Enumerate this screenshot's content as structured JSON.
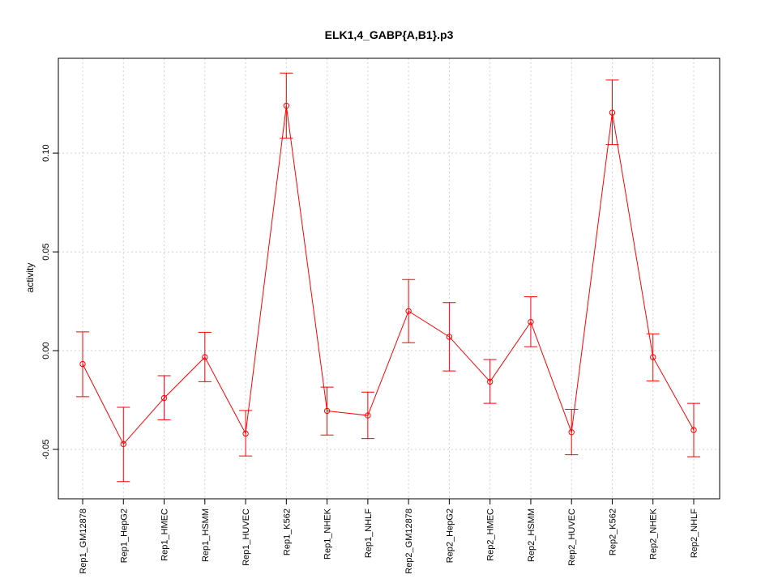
{
  "chart_data": {
    "type": "line",
    "title": "ELK1,4_GABP{A,B1}.p3",
    "xlabel": "",
    "ylabel": "activity",
    "categories": [
      "Rep1_GM12878",
      "Rep1_HepG2",
      "Rep1_HMEC",
      "Rep1_HSMM",
      "Rep1_HUVEC",
      "Rep1_K562",
      "Rep1_NHEK",
      "Rep1_NHLF",
      "Rep2_GM12878",
      "Rep2_HepG2",
      "Rep2_HMEC",
      "Rep2_HSMM",
      "Rep2_HUVEC",
      "Rep2_K562",
      "Rep2_NHEK",
      "Rep2_NHLF"
    ],
    "values": [
      -0.0068,
      -0.0473,
      -0.024,
      -0.0033,
      -0.042,
      0.124,
      -0.0305,
      -0.0328,
      0.02,
      0.007,
      -0.0157,
      0.0145,
      -0.0413,
      0.1205,
      -0.0033,
      -0.0402
    ],
    "error_low": [
      -0.0233,
      -0.0663,
      -0.035,
      -0.0157,
      -0.0533,
      0.1075,
      -0.0427,
      -0.0445,
      0.004,
      -0.0103,
      -0.0267,
      0.002,
      -0.0527,
      0.1043,
      -0.0153,
      -0.0537
    ],
    "error_high": [
      0.0095,
      -0.0287,
      -0.0127,
      0.0093,
      -0.0303,
      0.1405,
      -0.0185,
      -0.021,
      0.036,
      0.0243,
      -0.0045,
      0.0273,
      -0.0297,
      0.137,
      0.0085,
      -0.0267
    ],
    "ylim": [
      -0.075,
      0.148
    ],
    "yticks": [
      -0.05,
      0.0,
      0.05,
      0.1
    ],
    "ytick_labels": [
      "-0.05",
      "0.00",
      "0.05",
      "0.10"
    ],
    "grid": true,
    "color": "#ff0000"
  }
}
